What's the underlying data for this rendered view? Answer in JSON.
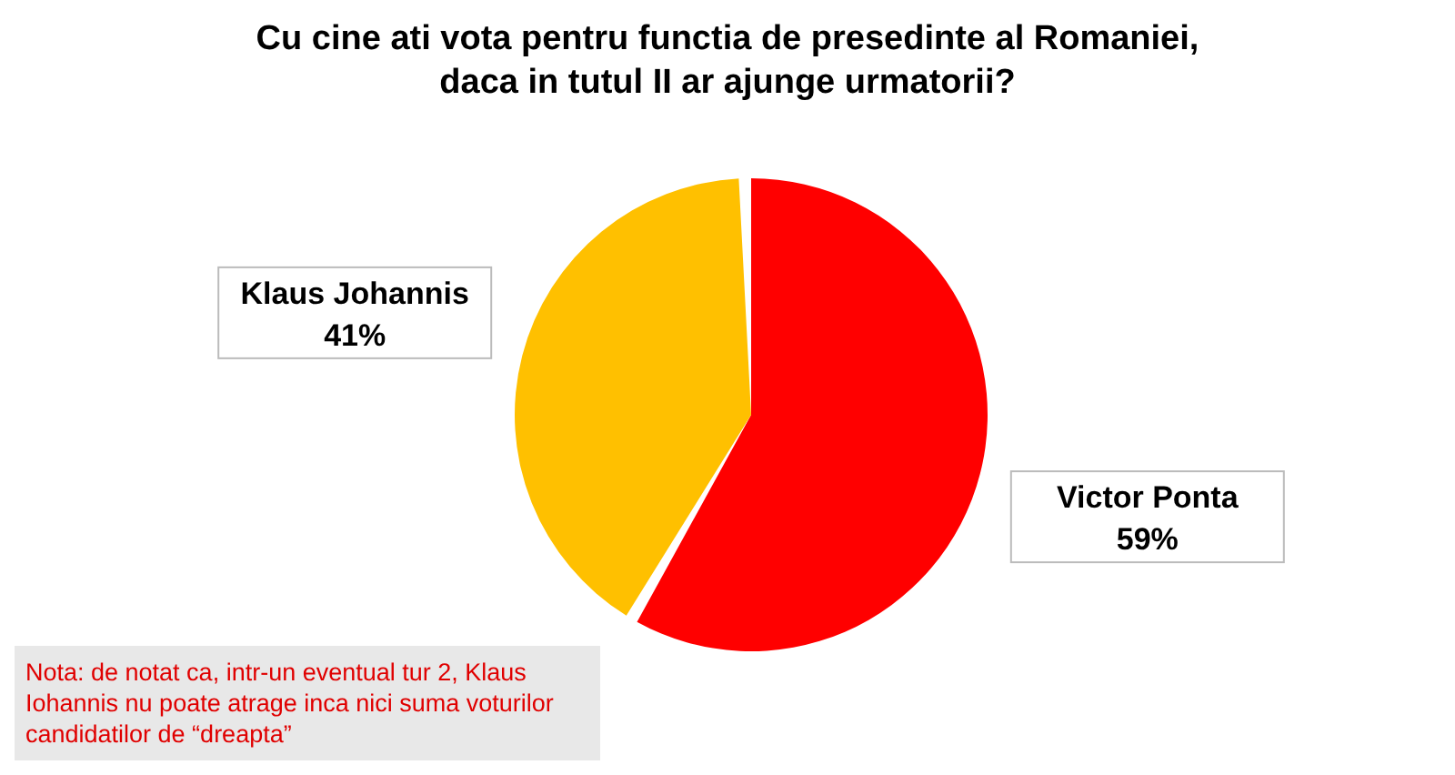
{
  "chart_data": {
    "type": "pie",
    "title": "Cu cine ati vota pentru functia de presedinte al Romaniei, daca in tutul II ar ajunge urmatorii?",
    "categories": [
      "Victor Ponta",
      "Klaus Johannis"
    ],
    "values": [
      59,
      41
    ],
    "colors": [
      "#ff0000",
      "#ffc000"
    ],
    "value_labels": [
      "59%",
      "41%"
    ],
    "legend": false,
    "annotations": [
      "Nota: de notat ca, intr-un eventual tur 2, Klaus Iohannis nu poate atrage inca nici suma voturilor candidatilor de “dreapta”"
    ]
  }
}
